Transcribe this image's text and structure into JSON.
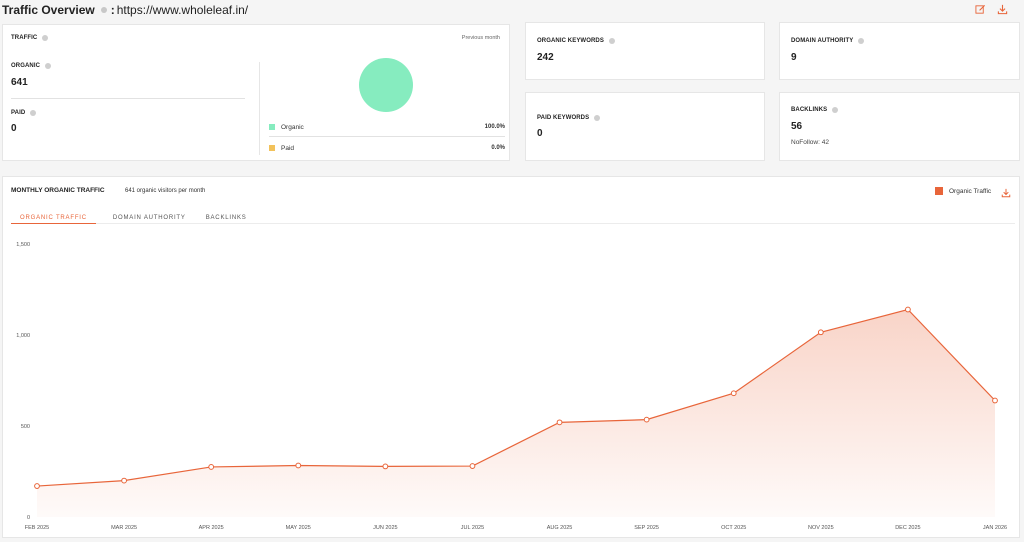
{
  "header": {
    "title": "Traffic Overview",
    "separator": ":",
    "domain": "https://www.wholeleaf.in/"
  },
  "traffic": {
    "label": "TRAFFIC",
    "previous_month": "Previous month",
    "organic_label": "ORGANIC",
    "organic_value": "641",
    "paid_label": "PAID",
    "paid_value": "0",
    "legend": [
      {
        "name": "Organic",
        "pct": "100.0%",
        "color": "#86ecbf"
      },
      {
        "name": "Paid",
        "pct": "0.0%",
        "color": "#f2c25b"
      }
    ]
  },
  "metrics": {
    "organic_keywords": {
      "label": "ORGANIC KEYWORDS",
      "value": "242"
    },
    "paid_keywords": {
      "label": "PAID KEYWORDS",
      "value": "0"
    },
    "domain_authority": {
      "label": "DOMAIN AUTHORITY",
      "value": "9"
    },
    "backlinks": {
      "label": "BACKLINKS",
      "value": "56",
      "nofollow": "NoFollow: 42"
    }
  },
  "chart_section": {
    "title": "MONTHLY ORGANIC TRAFFIC",
    "subtitle": "641 organic visitors per month",
    "legend_label": "Organic Traffic",
    "tabs": [
      "ORGANIC TRAFFIC",
      "DOMAIN AUTHORITY",
      "BACKLINKS"
    ],
    "active_tab": 0
  },
  "chart_data": {
    "type": "area",
    "x": [
      "FEB 2025",
      "MAR 2025",
      "APR 2025",
      "MAY 2025",
      "JUN 2025",
      "JUL 2025",
      "AUG 2025",
      "SEP 2025",
      "OCT 2025",
      "NOV 2025",
      "DEC 2025",
      "JAN 2026"
    ],
    "series": [
      {
        "name": "Organic Traffic",
        "values": [
          170,
          200,
          275,
          283,
          278,
          280,
          520,
          535,
          680,
          1015,
          1140,
          640
        ],
        "color": "#e8653a"
      }
    ],
    "yticks": [
      0,
      500,
      1000,
      1500
    ],
    "ytick_labels": [
      "0",
      "500",
      "1,000",
      "1,500"
    ],
    "ylim": [
      0,
      1500
    ],
    "grid": false,
    "legend_placement": "top-right"
  },
  "icons": {
    "edit": "edit-icon",
    "download": "download-icon"
  }
}
